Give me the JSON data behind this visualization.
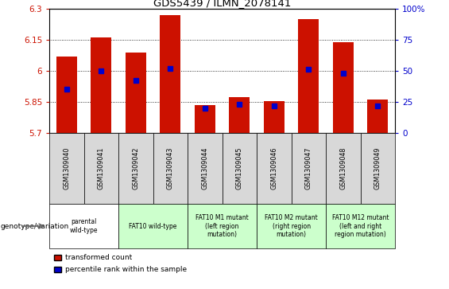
{
  "title": "GDS5439 / ILMN_2078141",
  "samples": [
    "GSM1309040",
    "GSM1309041",
    "GSM1309042",
    "GSM1309043",
    "GSM1309044",
    "GSM1309045",
    "GSM1309046",
    "GSM1309047",
    "GSM1309048",
    "GSM1309049"
  ],
  "transformed_count": [
    6.07,
    6.16,
    6.09,
    6.27,
    5.835,
    5.872,
    5.855,
    6.25,
    6.14,
    5.86
  ],
  "percentile_rank": [
    35,
    50,
    42,
    52,
    20,
    23,
    22,
    51,
    48,
    22
  ],
  "ymin": 5.7,
  "ymax": 6.3,
  "yticks": [
    5.7,
    5.85,
    6.0,
    6.15,
    6.3
  ],
  "ytick_labels": [
    "5.7",
    "5.85",
    "6",
    "6.15",
    "6.3"
  ],
  "y2ticks": [
    0,
    25,
    50,
    75,
    100
  ],
  "y2tick_labels": [
    "0",
    "25",
    "50",
    "75",
    "100%"
  ],
  "bar_color": "#cc1100",
  "blue_color": "#0000cc",
  "bar_width": 0.6,
  "blue_marker_size": 5,
  "genotype_groups": [
    {
      "label": "parental\nwild-type",
      "indices": [
        0,
        1
      ],
      "color": "#ffffff"
    },
    {
      "label": "FAT10 wild-type",
      "indices": [
        2,
        3
      ],
      "color": "#ccffcc"
    },
    {
      "label": "FAT10 M1 mutant\n(left region\nmutation)",
      "indices": [
        4,
        5
      ],
      "color": "#ccffcc"
    },
    {
      "label": "FAT10 M2 mutant\n(right region\nmutation)",
      "indices": [
        6,
        7
      ],
      "color": "#ccffcc"
    },
    {
      "label": "FAT10 M12 mutant\n(left and right\nregion mutation)",
      "indices": [
        8,
        9
      ],
      "color": "#ccffcc"
    }
  ],
  "legend_red_label": "transformed count",
  "legend_blue_label": "percentile rank within the sample",
  "genotype_label": "genotype/variation"
}
